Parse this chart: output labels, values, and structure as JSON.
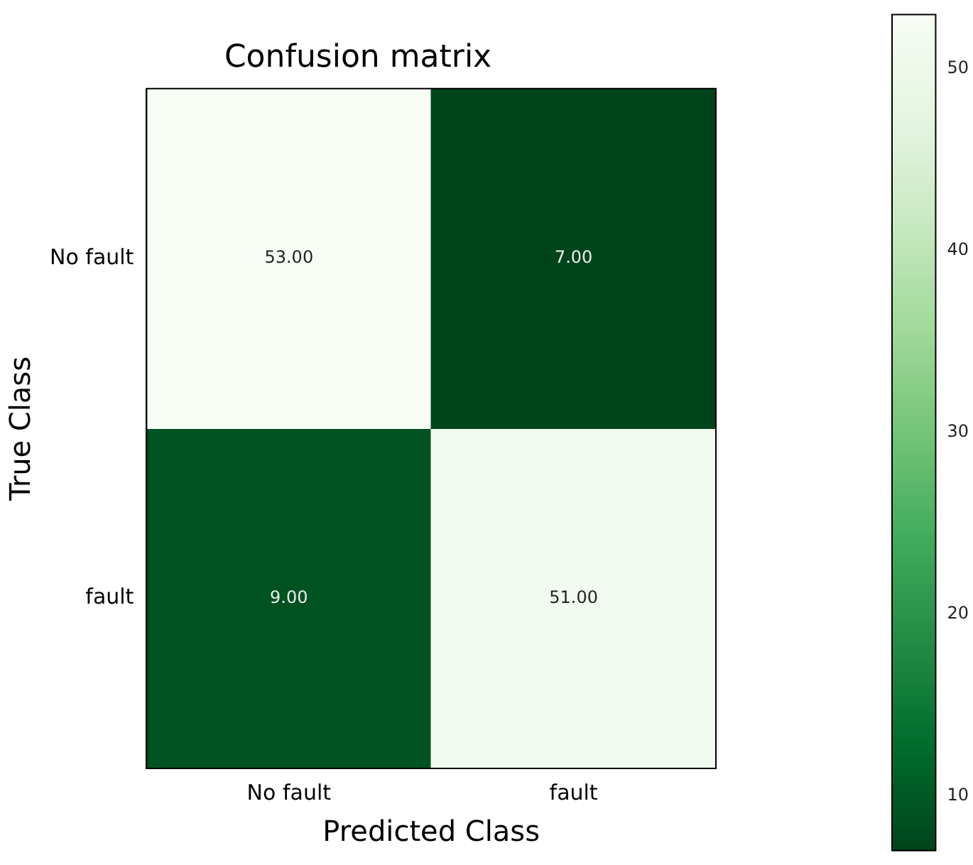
{
  "chart_data": {
    "type": "heatmap",
    "title": "Confusion matrix",
    "xlabel": "Predicted Class",
    "ylabel": "True Class",
    "categories": [
      "No fault",
      "fault"
    ],
    "y_categories": [
      "No fault",
      "fault"
    ],
    "cells": [
      [
        53,
        7
      ],
      [
        9,
        51
      ]
    ],
    "cell_labels": [
      [
        "53.00",
        "7.00"
      ],
      [
        "9.00",
        "51.00"
      ]
    ],
    "clim": [
      7,
      53
    ],
    "cticks": [
      10,
      20,
      30,
      40,
      50
    ]
  }
}
